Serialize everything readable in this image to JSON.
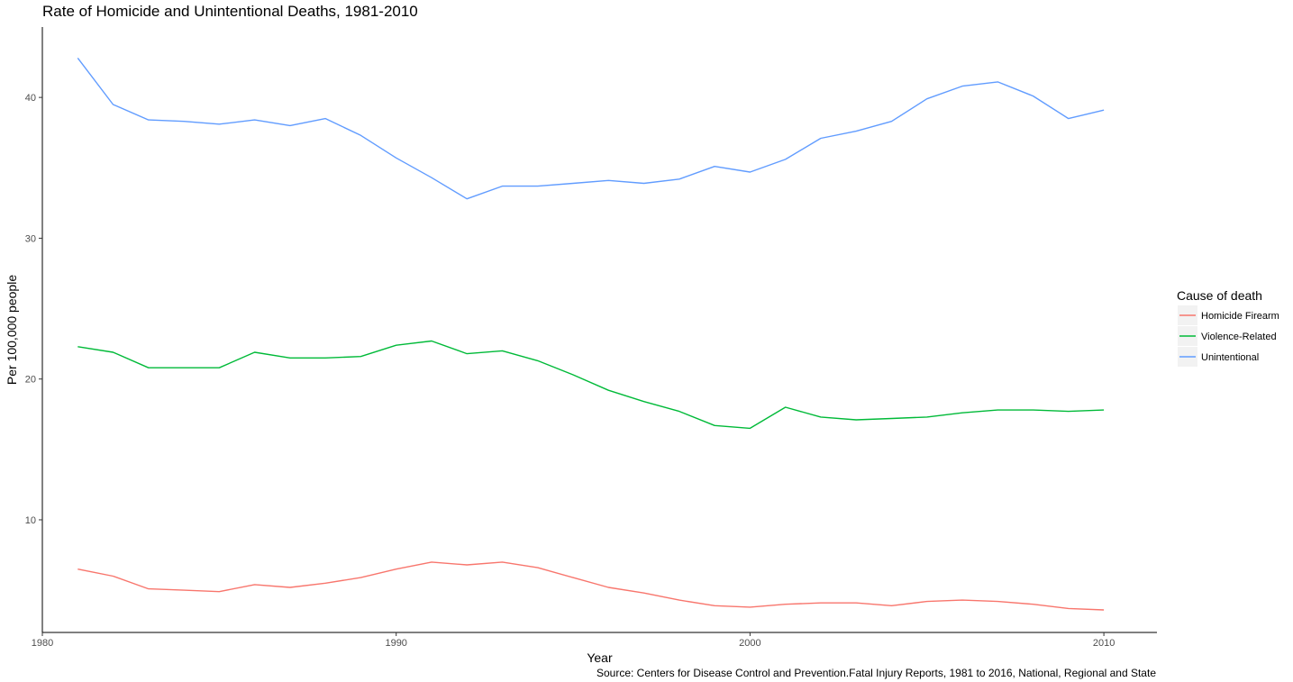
{
  "chart_data": {
    "type": "line",
    "title": "Rate of Homicide and Unintentional Deaths, 1981-2010",
    "xlabel": "Year",
    "ylabel": "Per 100,000 people",
    "caption": "Source: Centers for Disease Control and Prevention.Fatal Injury Reports, 1981 to 2016, National, Regional and State",
    "xlim": [
      1980,
      2011.5
    ],
    "ylim": [
      2,
      45
    ],
    "x_ticks": [
      1980,
      1990,
      2000,
      2010
    ],
    "y_ticks": [
      10,
      20,
      30,
      40
    ],
    "grid": false,
    "legend": {
      "title": "Cause of death",
      "position": "right"
    },
    "x": [
      1981,
      1982,
      1983,
      1984,
      1985,
      1986,
      1987,
      1988,
      1989,
      1990,
      1991,
      1992,
      1993,
      1994,
      1995,
      1996,
      1997,
      1998,
      1999,
      2000,
      2001,
      2002,
      2003,
      2004,
      2005,
      2006,
      2007,
      2008,
      2009,
      2010
    ],
    "series": [
      {
        "name": "Homicide Firearm",
        "color": "#F8766D",
        "values": [
          6.5,
          6.0,
          5.1,
          5.0,
          4.9,
          5.4,
          5.2,
          5.5,
          5.9,
          6.5,
          7.0,
          6.8,
          7.0,
          6.6,
          5.9,
          5.2,
          4.8,
          4.3,
          3.9,
          3.8,
          4.0,
          4.1,
          4.1,
          3.9,
          4.2,
          4.3,
          4.2,
          4.0,
          3.7,
          3.6
        ]
      },
      {
        "name": "Violence-Related",
        "color": "#00BA38",
        "values": [
          22.3,
          21.9,
          20.8,
          20.8,
          20.8,
          21.9,
          21.5,
          21.5,
          21.6,
          22.4,
          22.7,
          21.8,
          22.0,
          21.3,
          20.3,
          19.2,
          18.4,
          17.7,
          16.7,
          16.5,
          18.0,
          17.3,
          17.1,
          17.2,
          17.3,
          17.6,
          17.8,
          17.8,
          17.7,
          17.8
        ]
      },
      {
        "name": "Unintentional",
        "color": "#619CFF",
        "values": [
          42.8,
          39.5,
          38.4,
          38.3,
          38.1,
          38.4,
          38.0,
          38.5,
          37.3,
          35.7,
          34.3,
          32.8,
          33.7,
          33.7,
          33.9,
          34.1,
          33.9,
          34.2,
          35.1,
          34.7,
          35.6,
          37.1,
          37.6,
          38.3,
          39.9,
          40.8,
          41.1,
          40.1,
          38.5,
          39.1
        ]
      }
    ]
  }
}
